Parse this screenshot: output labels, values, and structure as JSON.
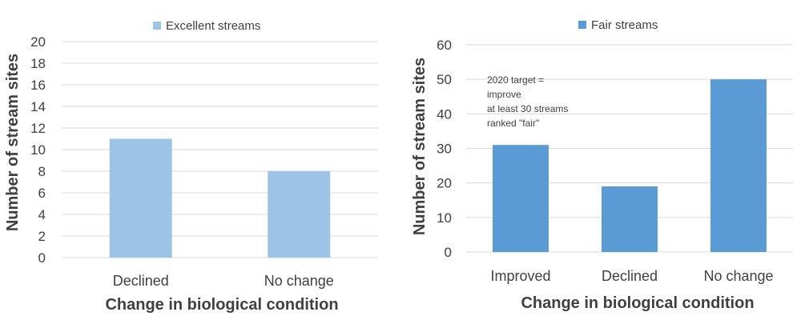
{
  "chart_data": [
    {
      "type": "bar",
      "categories": [
        "Declined",
        "No change"
      ],
      "series": [
        {
          "name": "Excellent streams",
          "values": [
            11,
            8
          ],
          "color": "#9dc3e6"
        }
      ],
      "ylim": [
        0,
        20
      ],
      "yticks": [
        0,
        2,
        4,
        6,
        8,
        10,
        12,
        14,
        16,
        18,
        20
      ],
      "xlabel": "Change in biological condition",
      "ylabel": "Number of stream sites",
      "legend_position": "top",
      "grid": true
    },
    {
      "type": "bar",
      "categories": [
        "Improved",
        "Declined",
        "No change"
      ],
      "series": [
        {
          "name": "Fair streams",
          "values": [
            31,
            19,
            50
          ],
          "color": "#5b9bd5"
        }
      ],
      "ylim": [
        0,
        60
      ],
      "yticks": [
        0,
        10,
        20,
        30,
        40,
        50,
        60
      ],
      "xlabel": "Change in biological condition",
      "ylabel": "Number of stream sites",
      "legend_position": "top",
      "grid": true,
      "annotation": [
        "2020 target =",
        "improve",
        "at least 30 streams",
        "ranked \"fair\""
      ]
    }
  ]
}
